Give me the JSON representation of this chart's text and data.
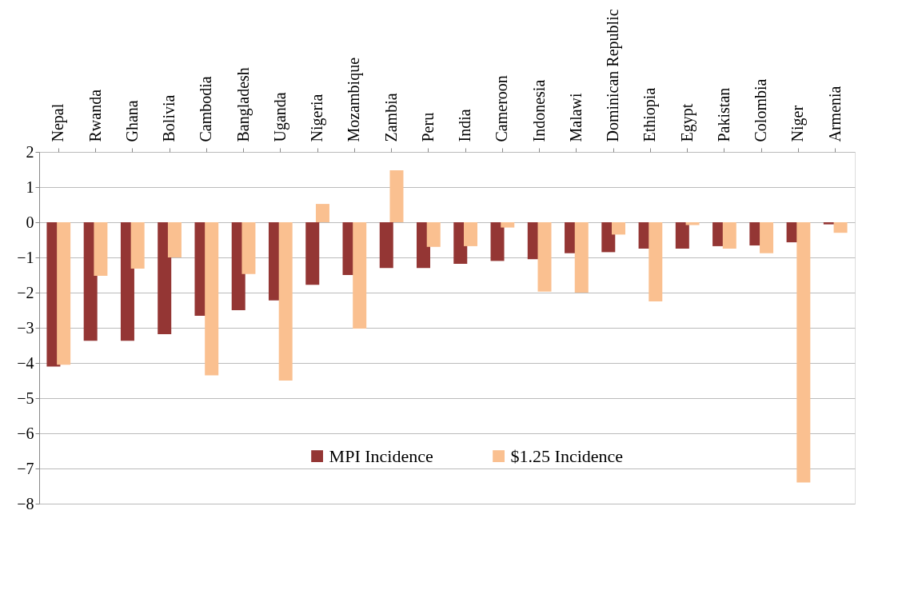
{
  "chart_data": {
    "type": "bar",
    "categories": [
      "Nepal",
      "Rwanda",
      "Ghana",
      "Bolivia",
      "Cambodia",
      "Bangladesh",
      "Uganda",
      "Nigeria",
      "Mozambique",
      "Zambia",
      "Peru",
      "India",
      "Cameroon",
      "Indonesia",
      "Malawi",
      "Dominican Republic",
      "Ethiopia",
      "Egypt",
      "Pakistan",
      "Colombia",
      "Niger",
      "Armenia"
    ],
    "series": [
      {
        "name": "MPI Incidence",
        "color": "#943634",
        "values": [
          -4.1,
          -3.37,
          -3.37,
          -3.18,
          -2.66,
          -2.5,
          -2.22,
          -1.78,
          -1.5,
          -1.3,
          -1.3,
          -1.18,
          -1.1,
          -1.05,
          -0.88,
          -0.85,
          -0.75,
          -0.75,
          -0.68,
          -0.66,
          -0.57,
          -0.06
        ]
      },
      {
        "name": "$1.25 Incidence",
        "color": "#fac090",
        "values": [
          -4.05,
          -1.52,
          -1.32,
          -1.0,
          -4.35,
          -1.47,
          -4.5,
          0.52,
          -3.02,
          1.48,
          -0.7,
          -0.68,
          -0.15,
          -1.97,
          -2.0,
          -0.35,
          -2.25,
          -0.08,
          -0.75,
          -0.88,
          -7.4,
          -0.3
        ]
      }
    ],
    "ylim": [
      -8,
      2
    ],
    "yticks": [
      -8,
      -7,
      -6,
      -5,
      -4,
      -3,
      -2,
      -1,
      0,
      1,
      2
    ],
    "grid": "y",
    "legend": "bottom"
  }
}
